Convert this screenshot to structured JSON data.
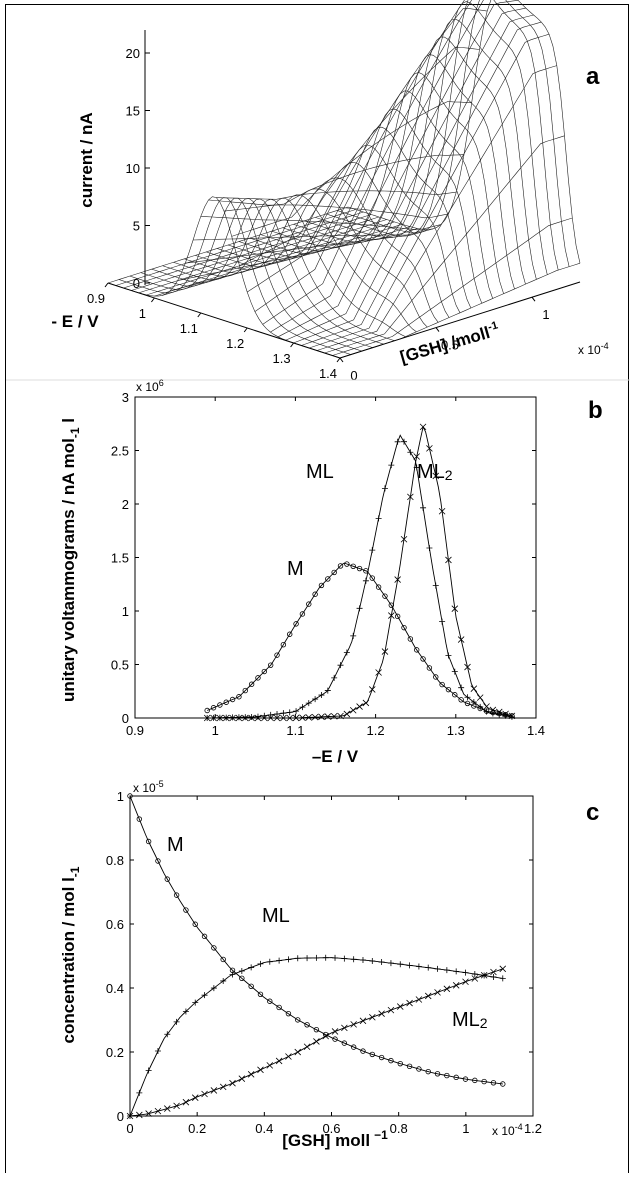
{
  "chart_data": [
    {
      "panel": "a",
      "type": "surface",
      "zlabel": "current / nA",
      "ylabel": "- E / V",
      "xlabel": "[GSH] /moll",
      "xlabel_sup": "-1",
      "x_multiplier": "x 10",
      "x_multiplier_exp": "-4",
      "z_ticks": [
        "0",
        "5",
        "10",
        "15",
        "20"
      ],
      "e_ticks": [
        "0.9",
        "1",
        "1.1",
        "1.2",
        "1.3",
        "1.4"
      ],
      "gsh_ticks": [
        "0",
        "0.5",
        "1"
      ],
      "zlim": [
        0,
        22
      ]
    },
    {
      "panel": "b",
      "type": "line",
      "ylabel": "unitary voltammograms / nA mol",
      "ylabel_sub": "-1",
      "ylabel_tail": " l",
      "xlabel": "–E / V",
      "y_multiplier": "x 10",
      "y_multiplier_exp": "6",
      "xlim": [
        0.9,
        1.4
      ],
      "ylim": [
        0,
        3
      ],
      "x_ticks": [
        "0.9",
        "1",
        "1.1",
        "1.2",
        "1.3",
        "1.4"
      ],
      "y_ticks": [
        "0",
        "0.5",
        "1",
        "1.5",
        "2",
        "2.5",
        "3"
      ],
      "series": [
        {
          "name": "M",
          "label_sub": "",
          "marker": "circle",
          "x": [
            0.99,
            1.03,
            1.07,
            1.1,
            1.13,
            1.16,
            1.19,
            1.22,
            1.25,
            1.28,
            1.31,
            1.34,
            1.37
          ],
          "y": [
            0.07,
            0.2,
            0.5,
            0.87,
            1.22,
            1.45,
            1.37,
            1.05,
            0.65,
            0.33,
            0.15,
            0.06,
            0.02
          ]
        },
        {
          "name": "ML",
          "label_sub": "",
          "marker": "plus",
          "x": [
            0.99,
            1.05,
            1.1,
            1.14,
            1.17,
            1.19,
            1.21,
            1.23,
            1.25,
            1.27,
            1.29,
            1.31,
            1.34,
            1.37
          ],
          "y": [
            0.0,
            0.01,
            0.06,
            0.25,
            0.7,
            1.35,
            2.1,
            2.65,
            2.4,
            1.45,
            0.6,
            0.22,
            0.05,
            0.01
          ]
        },
        {
          "name": "ML",
          "label_sub": "2",
          "marker": "cross",
          "x": [
            0.99,
            1.1,
            1.16,
            1.19,
            1.21,
            1.23,
            1.25,
            1.26,
            1.28,
            1.3,
            1.32,
            1.34,
            1.37
          ],
          "y": [
            0.0,
            0.0,
            0.02,
            0.15,
            0.55,
            1.4,
            2.4,
            2.75,
            2.1,
            0.95,
            0.3,
            0.09,
            0.02
          ]
        }
      ]
    },
    {
      "panel": "c",
      "type": "line",
      "ylabel": "concentration / mol l",
      "ylabel_sub": "-1",
      "xlabel": "[GSH] moll",
      "xlabel_sup": "−1",
      "y_multiplier": "x 10",
      "y_multiplier_exp": "-5",
      "x_multiplier": "x 10",
      "x_multiplier_exp": "-4",
      "xlim": [
        0,
        1.2
      ],
      "ylim": [
        0,
        1
      ],
      "x_ticks": [
        "0",
        "0.2",
        "0.4",
        "0.6",
        "0.8",
        "1",
        "1.2"
      ],
      "y_ticks": [
        "0",
        "0.2",
        "0.4",
        "0.6",
        "0.8",
        "1"
      ],
      "series": [
        {
          "name": "M",
          "label_sub": "",
          "marker": "circle",
          "x": [
            0,
            0.05,
            0.1,
            0.15,
            0.2,
            0.3,
            0.4,
            0.5,
            0.6,
            0.7,
            0.8,
            0.9,
            1.0,
            1.11
          ],
          "y": [
            1.0,
            0.87,
            0.76,
            0.67,
            0.59,
            0.46,
            0.37,
            0.3,
            0.245,
            0.2,
            0.165,
            0.135,
            0.115,
            0.1
          ]
        },
        {
          "name": "ML",
          "label_sub": "",
          "marker": "plus",
          "x": [
            0,
            0.05,
            0.1,
            0.15,
            0.2,
            0.3,
            0.4,
            0.5,
            0.6,
            0.7,
            0.8,
            0.9,
            1.0,
            1.11
          ],
          "y": [
            0,
            0.13,
            0.24,
            0.31,
            0.36,
            0.44,
            0.48,
            0.493,
            0.495,
            0.487,
            0.475,
            0.462,
            0.448,
            0.43
          ]
        },
        {
          "name": "ML",
          "label_sub": "2",
          "marker": "cross",
          "x": [
            0,
            0.05,
            0.1,
            0.15,
            0.2,
            0.3,
            0.4,
            0.5,
            0.6,
            0.7,
            0.8,
            0.9,
            1.0,
            1.11
          ],
          "y": [
            0,
            0.006,
            0.02,
            0.035,
            0.06,
            0.1,
            0.15,
            0.2,
            0.26,
            0.3,
            0.34,
            0.38,
            0.42,
            0.46
          ]
        }
      ]
    }
  ]
}
